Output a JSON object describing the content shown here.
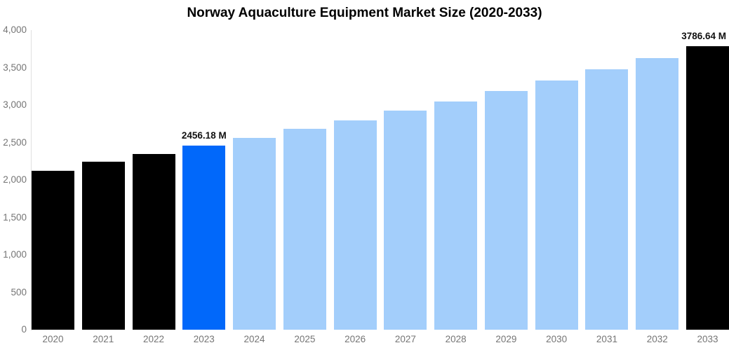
{
  "chart_data": {
    "type": "bar",
    "title": "Norway Aquaculture Equipment Market Size (2020-2033)",
    "xlabel": "",
    "ylabel": "",
    "unit": "M",
    "ylim": [
      0,
      4000
    ],
    "grid": false,
    "legend": false,
    "yticks": [
      {
        "value": 0,
        "label": "0"
      },
      {
        "value": 500,
        "label": "500"
      },
      {
        "value": 1000,
        "label": "1,000"
      },
      {
        "value": 1500,
        "label": "1,500"
      },
      {
        "value": 2000,
        "label": "2,000"
      },
      {
        "value": 2500,
        "label": "2,500"
      },
      {
        "value": 3000,
        "label": "3,000"
      },
      {
        "value": 3500,
        "label": "3,500"
      },
      {
        "value": 4000,
        "label": "4,000"
      }
    ],
    "categories": [
      "2020",
      "2021",
      "2022",
      "2023",
      "2024",
      "2025",
      "2026",
      "2027",
      "2028",
      "2029",
      "2030",
      "2031",
      "2032",
      "2033"
    ],
    "points": [
      {
        "year": "2020",
        "value": 2120,
        "color_role": "historical",
        "data_label": null
      },
      {
        "year": "2021",
        "value": 2245,
        "color_role": "historical",
        "data_label": null
      },
      {
        "year": "2022",
        "value": 2350,
        "color_role": "historical",
        "data_label": null
      },
      {
        "year": "2023",
        "value": 2456.18,
        "color_role": "base_year",
        "data_label": "2456.18 M"
      },
      {
        "year": "2024",
        "value": 2565,
        "color_role": "forecast",
        "data_label": null
      },
      {
        "year": "2025",
        "value": 2678,
        "color_role": "forecast",
        "data_label": null
      },
      {
        "year": "2026",
        "value": 2797,
        "color_role": "forecast",
        "data_label": null
      },
      {
        "year": "2027",
        "value": 2921,
        "color_role": "forecast",
        "data_label": null
      },
      {
        "year": "2028",
        "value": 3050,
        "color_role": "forecast",
        "data_label": null
      },
      {
        "year": "2029",
        "value": 3185,
        "color_role": "forecast",
        "data_label": null
      },
      {
        "year": "2030",
        "value": 3326,
        "color_role": "forecast",
        "data_label": null
      },
      {
        "year": "2031",
        "value": 3473,
        "color_role": "forecast",
        "data_label": null
      },
      {
        "year": "2032",
        "value": 3626,
        "color_role": "forecast",
        "data_label": null
      },
      {
        "year": "2033",
        "value": 3786.64,
        "color_role": "final_year",
        "data_label": "3786.64 M"
      }
    ],
    "colors": {
      "historical": "#000000",
      "base_year": "#0168fa",
      "forecast": "#a3cefb",
      "final_year": "#000000",
      "axis_line": "#e0e0e0",
      "tick_text": "#757575",
      "data_label_text": "#111111",
      "title_text": "#000000",
      "background": "#ffffff"
    }
  }
}
